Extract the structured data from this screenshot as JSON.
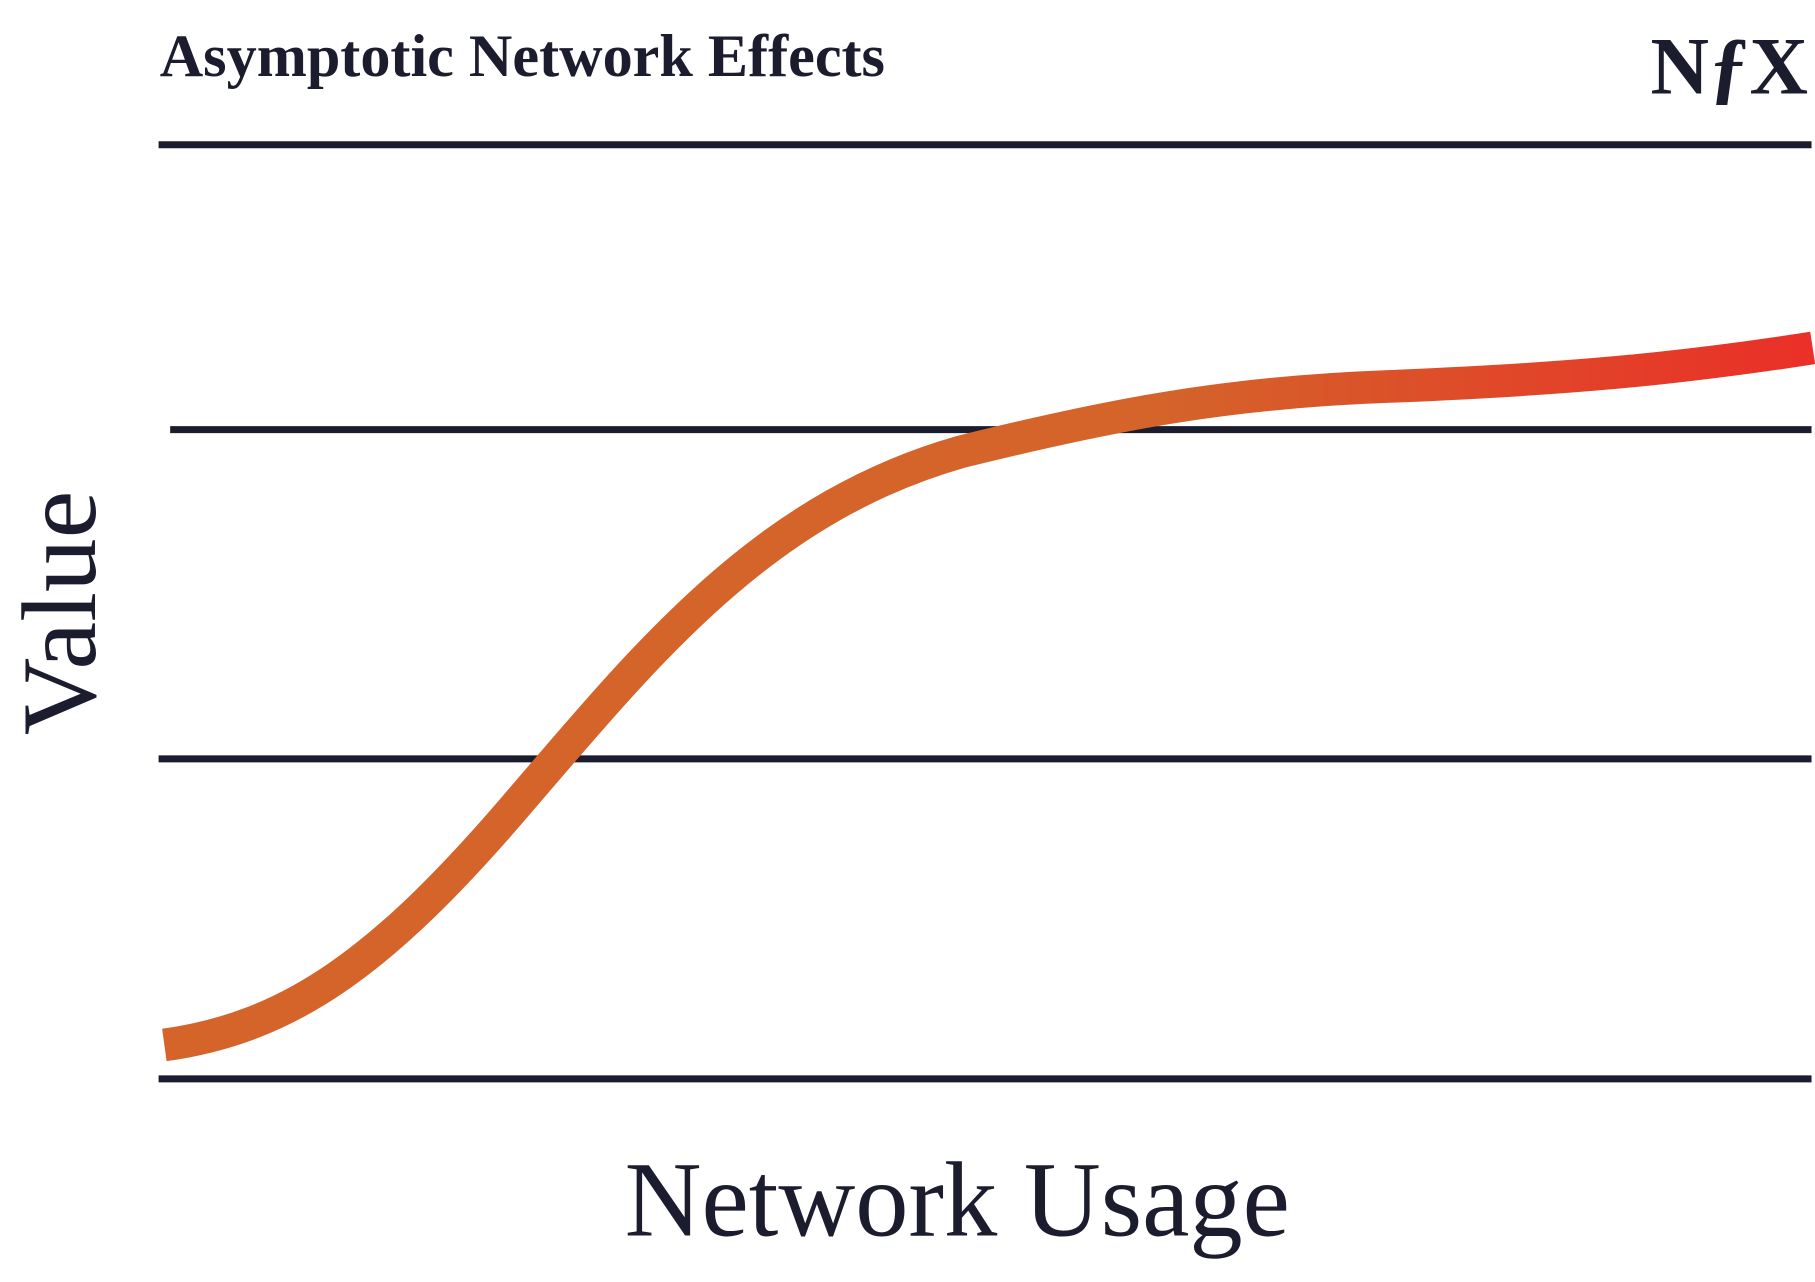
{
  "header": {
    "title": "Asymptotic Network Effects",
    "logo": "NƒX"
  },
  "axes": {
    "x_label": "Network Usage",
    "y_label": "Value"
  }
}
